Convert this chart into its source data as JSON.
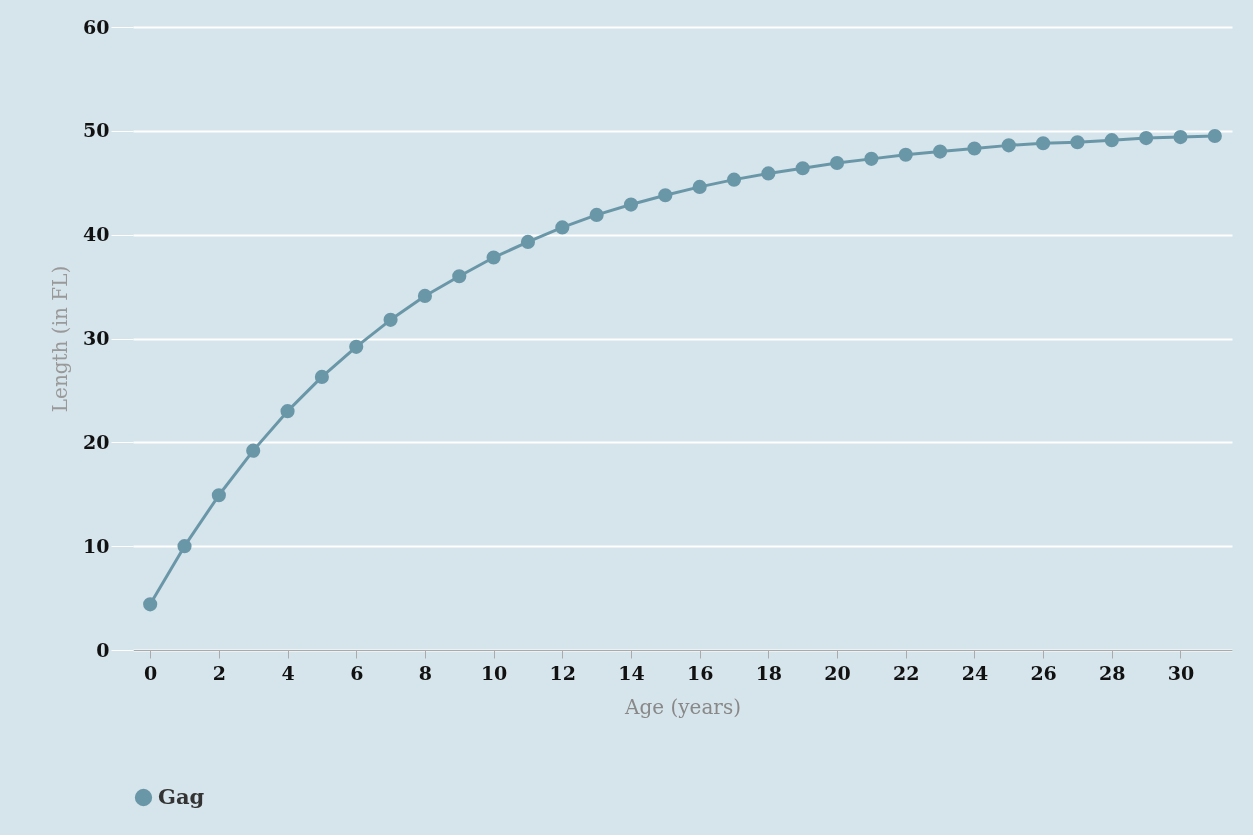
{
  "chart_data": {
    "type": "line",
    "xlabel": "Age (years)",
    "ylabel": "Length (in FL)",
    "x": [
      0,
      1,
      2,
      3,
      4,
      5,
      6,
      7,
      8,
      9,
      10,
      11,
      12,
      13,
      14,
      15,
      16,
      17,
      18,
      19,
      20,
      21,
      22,
      23,
      24,
      25,
      26,
      27,
      28,
      29,
      30,
      31
    ],
    "series": [
      {
        "name": "Gag",
        "color": "#6a97a8",
        "values": [
          4.4,
          10.0,
          14.9,
          19.2,
          23.0,
          26.3,
          29.2,
          31.8,
          34.1,
          36.0,
          37.8,
          39.3,
          40.7,
          41.9,
          42.9,
          43.8,
          44.6,
          45.3,
          45.9,
          46.4,
          46.9,
          47.3,
          47.7,
          48.0,
          48.3,
          48.6,
          48.8,
          48.9,
          49.1,
          49.3,
          49.4,
          49.5
        ]
      }
    ],
    "xlim": [
      -0.5,
      31.5
    ],
    "ylim": [
      0,
      60
    ],
    "xticks": [
      0,
      2,
      4,
      6,
      8,
      10,
      12,
      14,
      16,
      18,
      20,
      22,
      24,
      26,
      28,
      30
    ],
    "yticks": [
      0,
      10,
      20,
      30,
      40,
      50,
      60
    ],
    "grid": "y",
    "legend": "bottom",
    "marker": "circle",
    "line_style": "solid"
  }
}
